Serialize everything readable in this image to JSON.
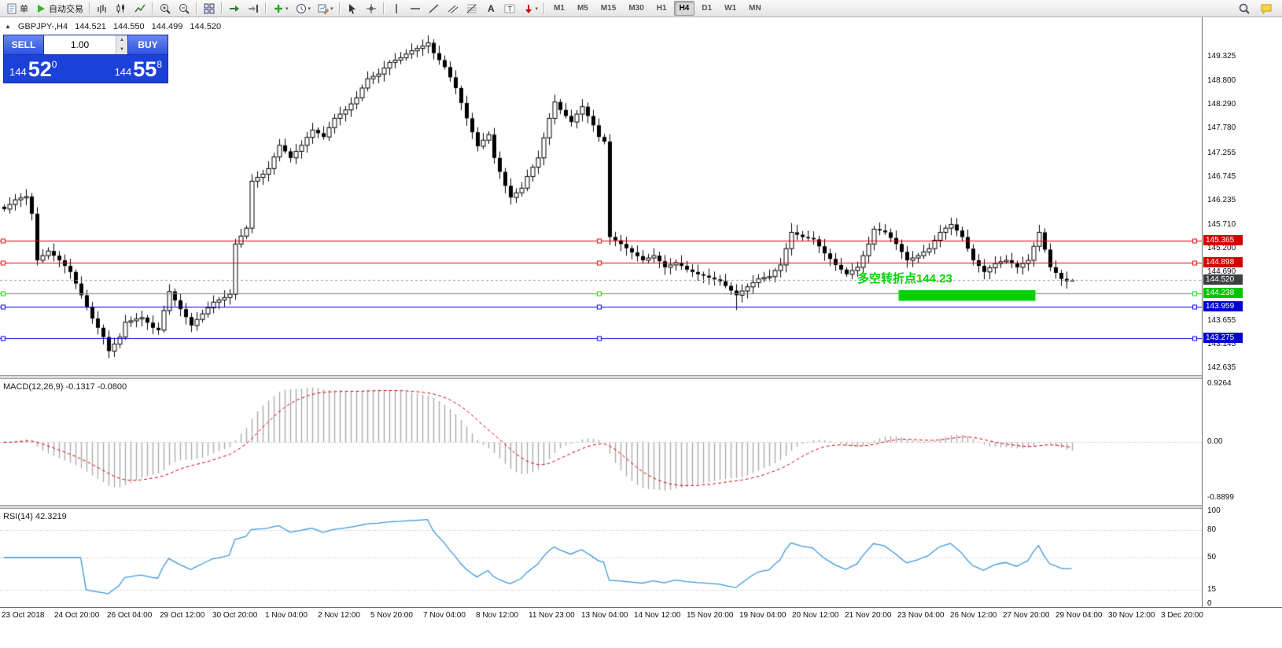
{
  "toolbar": {
    "items": [
      {
        "type": "button",
        "name": "new-order-button",
        "icon": "doc",
        "label": "单"
      },
      {
        "type": "button",
        "name": "autotrading-button",
        "icon": "play",
        "label": "自动交易"
      },
      {
        "type": "sep"
      },
      {
        "type": "button",
        "name": "bar-chart-button",
        "icon": "bars"
      },
      {
        "type": "button",
        "name": "candlestick-chart-button",
        "icon": "candles"
      },
      {
        "type": "button",
        "name": "line-chart-button",
        "icon": "line"
      },
      {
        "type": "sep"
      },
      {
        "type": "button",
        "name": "zoom-in-button",
        "icon": "zoomin"
      },
      {
        "type": "button",
        "name": "zoom-out-button",
        "icon": "zoomout"
      },
      {
        "type": "sep"
      },
      {
        "type": "button",
        "name": "tile-windows-button",
        "icon": "tile"
      },
      {
        "type": "sep"
      },
      {
        "type": "button",
        "name": "auto-scroll-button",
        "icon": "autoscroll"
      },
      {
        "type": "button",
        "name": "chart-shift-button",
        "icon": "shift"
      },
      {
        "type": "sep"
      },
      {
        "type": "button",
        "name": "indicators-button",
        "icon": "addind",
        "dropdown": true
      },
      {
        "type": "button",
        "name": "periods-button",
        "icon": "clock",
        "dropdown": true
      },
      {
        "type": "button",
        "name": "templates-button",
        "icon": "template",
        "dropdown": true
      },
      {
        "type": "sep"
      },
      {
        "type": "button",
        "name": "cursor-button",
        "icon": "cursor"
      },
      {
        "type": "button",
        "name": "crosshair-button",
        "icon": "crosshair"
      },
      {
        "type": "sep"
      },
      {
        "type": "button",
        "name": "vertical-line-button",
        "icon": "vline"
      },
      {
        "type": "button",
        "name": "horizontal-line-button",
        "icon": "hline"
      },
      {
        "type": "button",
        "name": "trendline-button",
        "icon": "tline"
      },
      {
        "type": "button",
        "name": "channel-button",
        "icon": "channel"
      },
      {
        "type": "button",
        "name": "fibonacci-button",
        "icon": "fibo"
      },
      {
        "type": "button",
        "name": "text-button",
        "icon": "textA"
      },
      {
        "type": "button",
        "name": "label-button",
        "icon": "labelT"
      },
      {
        "type": "button",
        "name": "arrows-button",
        "icon": "arrow",
        "dropdown": true
      },
      {
        "type": "sep"
      }
    ],
    "timeframes": [
      "M1",
      "M5",
      "M15",
      "M30",
      "H1",
      "H4",
      "D1",
      "W1",
      "MN"
    ],
    "active_timeframe": "H4",
    "right_items": [
      {
        "type": "button",
        "name": "search-button",
        "icon": "search"
      },
      {
        "type": "button",
        "name": "community-button",
        "icon": "chat"
      }
    ]
  },
  "symbol_bar": {
    "symbol": "GBPJPY-,H4",
    "open": "144.521",
    "high": "144.550",
    "low": "144.499",
    "close": "144.520"
  },
  "one_click": {
    "sell_label": "SELL",
    "buy_label": "BUY",
    "volume": "1.00",
    "sell_price_prefix": "144",
    "sell_price_big": "52",
    "sell_price_sup": "0",
    "buy_price_prefix": "144",
    "buy_price_big": "55",
    "buy_price_sup": "8"
  },
  "price_scale": {
    "labels": [
      "149.325",
      "148.800",
      "148.290",
      "147.780",
      "147.255",
      "146.745",
      "146.235",
      "145.710",
      "145.200",
      "144.690",
      "144.180",
      "143.655",
      "143.145",
      "142.635"
    ]
  },
  "price_lines": [
    {
      "price": 145.365,
      "label": "145.365",
      "color": "#e00000",
      "box": "#d40000",
      "style": "solid"
    },
    {
      "price": 144.898,
      "label": "144.898",
      "color": "#e00000",
      "box": "#d40000",
      "style": "solid"
    },
    {
      "price": 144.52,
      "label": "144.520",
      "color": "#9aa0a6",
      "box": "#3c4043",
      "style": "dash"
    },
    {
      "price": 144.238,
      "label": "144.238",
      "color": "#00e000",
      "box": "#00c400",
      "style": "solid"
    },
    {
      "price": 143.959,
      "label": "143.959",
      "color": "#0000e0",
      "box": "#0000d0",
      "style": "solid"
    },
    {
      "price": 143.275,
      "label": "143.275",
      "color": "#0000e0",
      "box": "#0000d0",
      "style": "solid"
    }
  ],
  "annotation": {
    "text": "多空转折点144.23",
    "color": "#00d400"
  },
  "highlight_rect": {
    "from_index": 163,
    "to_index": 187,
    "price_top": 144.31,
    "price_bottom": 144.08,
    "color": "#00d000"
  },
  "macd": {
    "label": "MACD(12,26,9)",
    "values_text": "-0.1317 -0.0800",
    "scale_labels": [
      "0.9264",
      "0.00",
      "-0.8899"
    ]
  },
  "rsi": {
    "label": "RSI(14)",
    "value_text": "42.3219",
    "scale_labels": [
      "100",
      "80",
      "50",
      "15",
      "0"
    ],
    "levels": [
      80,
      50,
      15
    ]
  },
  "time_axis": {
    "labels": [
      "23 Oct 2018",
      "24 Oct 20:00",
      "26 Oct 04:00",
      "29 Oct 12:00",
      "30 Oct 20:00",
      "1 Nov 04:00",
      "2 Nov 12:00",
      "5 Nov 20:00",
      "7 Nov 04:00",
      "8 Nov 12:00",
      "11 Nov 23:00",
      "13 Nov 04:00",
      "14 Nov 12:00",
      "15 Nov 20:00",
      "19 Nov 04:00",
      "20 Nov 12:00",
      "21 Nov 20:00",
      "23 Nov 04:00",
      "26 Nov 12:00",
      "27 Nov 20:00",
      "29 Nov 04:00",
      "30 Nov 12:00",
      "3 Dec 20:00"
    ]
  },
  "chart_data": {
    "type": "candlestick",
    "symbol": "GBPJPY-",
    "timeframe": "H4",
    "title": "GBPJPY-,H4",
    "price_axis": {
      "min": 142.635,
      "max": 149.325
    },
    "first_open": 146.1,
    "ohlc_current": {
      "open": 144.521,
      "high": 144.55,
      "low": 144.499,
      "close": 144.52
    },
    "closes": [
      146.05,
      146.15,
      146.25,
      146.29,
      146.32,
      145.95,
      144.95,
      145.05,
      145.15,
      145.05,
      144.95,
      144.83,
      144.7,
      144.45,
      144.2,
      143.95,
      143.7,
      143.5,
      143.3,
      143.0,
      143.15,
      143.3,
      143.62,
      143.65,
      143.69,
      143.72,
      143.61,
      143.5,
      143.45,
      143.87,
      144.28,
      144.09,
      143.9,
      143.73,
      143.55,
      143.68,
      143.8,
      143.93,
      144.05,
      144.1,
      144.15,
      144.22,
      145.3,
      145.47,
      145.64,
      146.65,
      146.73,
      146.8,
      146.92,
      147.17,
      147.42,
      147.29,
      147.15,
      147.29,
      147.42,
      147.59,
      147.75,
      147.68,
      147.6,
      147.8,
      148.0,
      148.09,
      148.18,
      148.31,
      148.44,
      148.65,
      148.85,
      148.9,
      148.95,
      149.08,
      149.2,
      149.25,
      149.3,
      149.38,
      149.45,
      149.5,
      149.55,
      149.62,
      149.4,
      149.25,
      149.1,
      148.88,
      148.65,
      148.33,
      148.0,
      147.7,
      147.4,
      147.53,
      147.65,
      147.15,
      146.85,
      146.55,
      146.3,
      146.4,
      146.5,
      146.75,
      146.95,
      147.15,
      147.58,
      148.0,
      148.35,
      148.18,
      148.05,
      147.92,
      148.09,
      148.25,
      148.05,
      147.85,
      147.6,
      147.5,
      145.45,
      145.38,
      145.3,
      145.21,
      145.12,
      145.04,
      144.95,
      145.0,
      145.05,
      144.93,
      144.8,
      144.85,
      144.9,
      144.83,
      144.75,
      144.7,
      144.65,
      144.62,
      144.58,
      144.54,
      144.5,
      144.4,
      144.3,
      144.2,
      144.29,
      144.38,
      144.47,
      144.55,
      144.58,
      144.6,
      144.73,
      144.85,
      145.2,
      145.55,
      145.5,
      145.45,
      145.43,
      145.4,
      145.25,
      145.1,
      144.98,
      144.85,
      144.75,
      144.65,
      144.73,
      144.8,
      145.05,
      145.3,
      145.62,
      145.59,
      145.55,
      145.43,
      145.3,
      145.13,
      144.95,
      145.0,
      145.05,
      145.13,
      145.2,
      145.38,
      145.55,
      145.64,
      145.72,
      145.59,
      145.45,
      145.2,
      144.95,
      144.83,
      144.7,
      144.79,
      144.88,
      144.92,
      144.95,
      144.88,
      144.8,
      144.88,
      144.95,
      145.25,
      145.55,
      145.18,
      144.8,
      144.68,
      144.55,
      144.5,
      144.52
    ],
    "wick_overrides": {
      "77": {
        "high": 149.78
      },
      "110": {
        "low": 145.28
      },
      "133": {
        "low": 143.88
      },
      "143": {
        "high": 145.75
      }
    },
    "indicators": [
      {
        "type": "MACD",
        "params": [
          12,
          26,
          9
        ],
        "current": [
          -0.1317,
          -0.08
        ],
        "scale": [
          0.9264,
          0.0,
          -0.8899
        ]
      },
      {
        "type": "RSI",
        "params": [
          14
        ],
        "current": 42.3219,
        "levels": [
          80,
          50,
          15
        ]
      }
    ]
  }
}
